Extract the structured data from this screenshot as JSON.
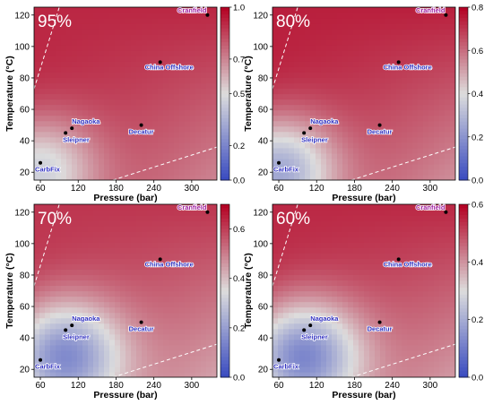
{
  "chart_data": [
    {
      "type": "heatmap",
      "title": "95%",
      "xlabel": "Pressure (bar)",
      "ylabel": "Temperature (°C)",
      "xlim": [
        50,
        340
      ],
      "ylim": [
        15,
        125
      ],
      "xticks": [
        "60",
        "120",
        "180",
        "240",
        "300"
      ],
      "yticks": [
        "20",
        "40",
        "60",
        "80",
        "100",
        "120"
      ],
      "colorbar": {
        "range": [
          0.0,
          1.0
        ],
        "ticks": [
          "0.0",
          "0.2",
          "0.5",
          "0.7",
          "1.0"
        ]
      },
      "sites": [
        {
          "name": "Cranfield",
          "x": 325,
          "y": 120
        },
        {
          "name": "China Offshore",
          "x": 250,
          "y": 90
        },
        {
          "name": "Nagaoka",
          "x": 110,
          "y": 48
        },
        {
          "name": "Sleipner",
          "x": 100,
          "y": 45
        },
        {
          "name": "Decatur",
          "x": 220,
          "y": 50
        },
        {
          "name": "CarbFix",
          "x": 60,
          "y": 26
        }
      ],
      "field": {
        "min": 0.3,
        "max": 0.92,
        "hotspot": [
          60,
          20
        ],
        "low_value": 0.45
      }
    },
    {
      "type": "heatmap",
      "title": "80%",
      "xlabel": "Pressure (bar)",
      "ylabel": "Temperature (°C)",
      "xlim": [
        50,
        340
      ],
      "ylim": [
        15,
        125
      ],
      "xticks": [
        "60",
        "120",
        "180",
        "240",
        "300"
      ],
      "yticks": [
        "20",
        "40",
        "60",
        "80",
        "100",
        "120"
      ],
      "colorbar": {
        "range": [
          0.0,
          0.8
        ],
        "ticks": [
          "0.0",
          "0.2",
          "0.4",
          "0.6",
          "0.8"
        ]
      },
      "sites": [
        {
          "name": "Cranfield",
          "x": 325,
          "y": 120
        },
        {
          "name": "China Offshore",
          "x": 250,
          "y": 90
        },
        {
          "name": "Nagaoka",
          "x": 110,
          "y": 48
        },
        {
          "name": "Sleipner",
          "x": 100,
          "y": 45
        },
        {
          "name": "Decatur",
          "x": 220,
          "y": 50
        },
        {
          "name": "CarbFix",
          "x": 60,
          "y": 26
        }
      ],
      "field": {
        "min": 0.15,
        "max": 0.75,
        "hotspot": [
          60,
          20
        ],
        "low_value": 0.25
      }
    },
    {
      "type": "heatmap",
      "title": "70%",
      "xlabel": "Pressure (bar)",
      "ylabel": "Temperature (°C)",
      "xlim": [
        50,
        340
      ],
      "ylim": [
        15,
        125
      ],
      "xticks": [
        "60",
        "120",
        "180",
        "240",
        "300"
      ],
      "yticks": [
        "20",
        "40",
        "60",
        "80",
        "100",
        "120"
      ],
      "colorbar": {
        "range": [
          0.0,
          0.7
        ],
        "ticks": [
          "0.0",
          "0.2",
          "0.4",
          "0.6"
        ]
      },
      "sites": [
        {
          "name": "Cranfield",
          "x": 325,
          "y": 120
        },
        {
          "name": "China Offshore",
          "x": 250,
          "y": 90
        },
        {
          "name": "Nagaoka",
          "x": 110,
          "y": 48
        },
        {
          "name": "Sleipner",
          "x": 100,
          "y": 45
        },
        {
          "name": "Decatur",
          "x": 220,
          "y": 50
        },
        {
          "name": "CarbFix",
          "x": 60,
          "y": 26
        }
      ],
      "field": {
        "min": 0.12,
        "max": 0.62,
        "hotspot": [
          100,
          28
        ],
        "low_value": 0.15
      }
    },
    {
      "type": "heatmap",
      "title": "60%",
      "xlabel": "Pressure (bar)",
      "ylabel": "Temperature (°C)",
      "xlim": [
        50,
        340
      ],
      "ylim": [
        15,
        125
      ],
      "xticks": [
        "60",
        "120",
        "180",
        "240",
        "300"
      ],
      "yticks": [
        "20",
        "40",
        "60",
        "80",
        "100",
        "120"
      ],
      "colorbar": {
        "range": [
          0.0,
          0.6
        ],
        "ticks": [
          "0.0",
          "0.2",
          "0.4",
          "0.6"
        ]
      },
      "sites": [
        {
          "name": "Cranfield",
          "x": 325,
          "y": 120
        },
        {
          "name": "China Offshore",
          "x": 250,
          "y": 90
        },
        {
          "name": "Nagaoka",
          "x": 110,
          "y": 48
        },
        {
          "name": "Sleipner",
          "x": 100,
          "y": 45
        },
        {
          "name": "Decatur",
          "x": 220,
          "y": 50
        },
        {
          "name": "CarbFix",
          "x": 60,
          "y": 26
        }
      ],
      "field": {
        "min": 0.1,
        "max": 0.55,
        "hotspot": [
          100,
          28
        ],
        "low_value": 0.12
      }
    }
  ],
  "colors": {
    "low": "#3b4cc0",
    "mid": "#dddddd",
    "high": "#b40426",
    "site_label": "#3030c0",
    "cranfield_label": "#a020a0"
  }
}
